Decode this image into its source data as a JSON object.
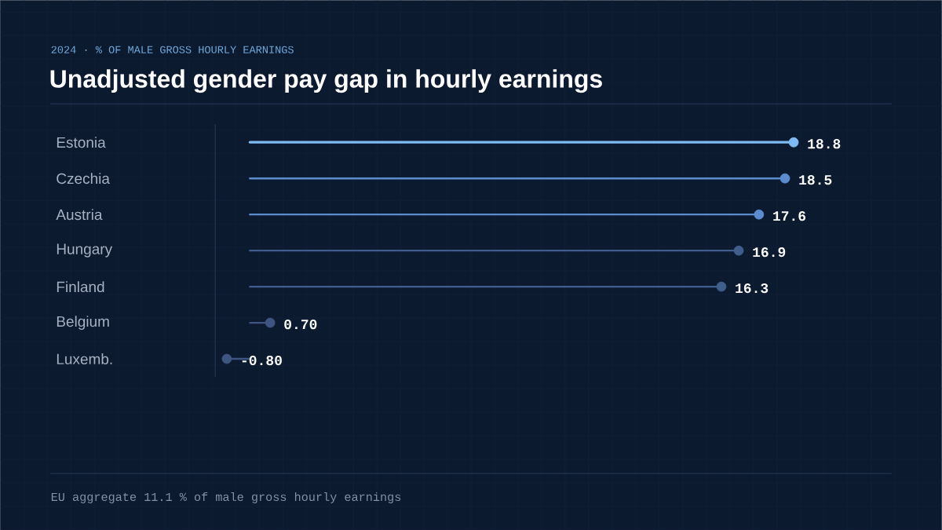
{
  "chart_data": {
    "type": "lollipop",
    "orientation": "horizontal",
    "title": "Unadjusted gender pay gap in hourly earnings",
    "subtitle": "2024  ·  % OF MALE GROSS HOURLY EARNINGS",
    "categories": [
      "Estonia",
      "Czechia",
      "Austria",
      "Hungary",
      "Finland",
      "Belgium",
      "Luxemb."
    ],
    "values": [
      18.8,
      18.5,
      17.6,
      16.9,
      16.3,
      0.7,
      -0.8
    ],
    "value_labels": [
      "18.8",
      "18.5",
      "17.6",
      "16.9",
      "16.3",
      "0.70",
      "-0.80"
    ],
    "colors": [
      "#7dbbf2",
      "#5a8cce",
      "#5a8cce",
      "#3f5e8c",
      "#3f5e8c",
      "#3d5580",
      "#3d5580"
    ],
    "grid": true,
    "tick_labels": "y",
    "annotations": [
      "EU aggregate  11.1  % of male gross hourly earnings"
    ]
  }
}
